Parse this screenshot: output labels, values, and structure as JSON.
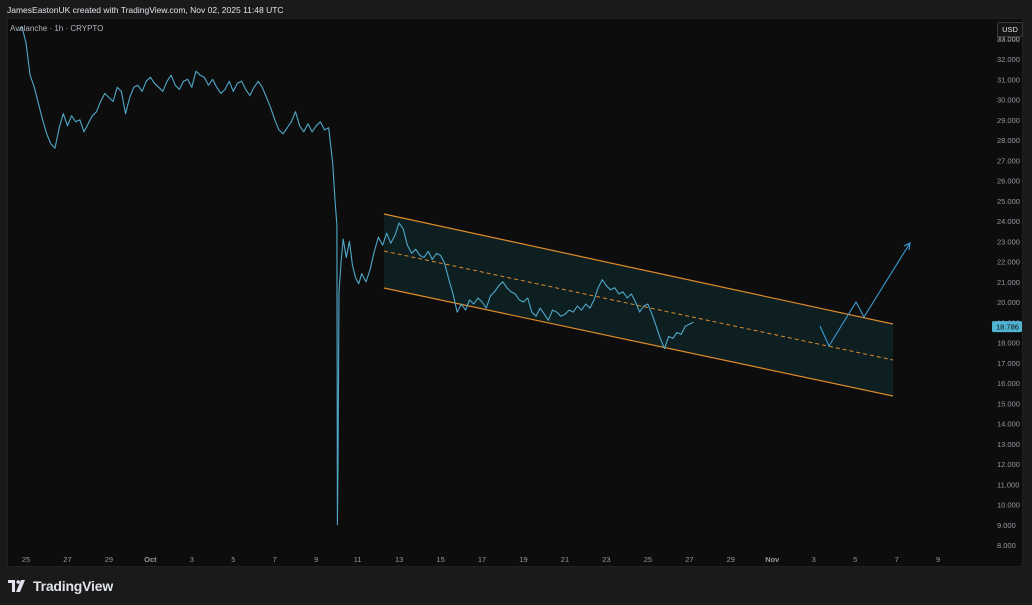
{
  "header": {
    "credit": "JamesEastonUK created with TradingView.com, Nov 02, 2025 11:48 UTC"
  },
  "symbol": {
    "label": "Avalanche · 1h · CRYPTO"
  },
  "axis": {
    "currency": "USD"
  },
  "logo": {
    "text": "TradingView"
  },
  "colors": {
    "price_line": "#4fa8c9",
    "channel_border": "#e08a2a",
    "channel_fill": "#0e2326",
    "price_label_bg": "#4fb3d1",
    "projection": "#3d9ad1",
    "axis_text": "#9598a1"
  },
  "chart_data": {
    "type": "line",
    "title": "",
    "ylabel": "",
    "ylim": [
      7.6,
      33.8
    ],
    "y_ticks": [
      "33.000",
      "32.000",
      "31.000",
      "30.000",
      "29.000",
      "28.000",
      "27.000",
      "26.000",
      "25.000",
      "24.000",
      "23.000",
      "22.000",
      "21.000",
      "20.000",
      "19.000",
      "18.000",
      "17.000",
      "16.000",
      "15.000",
      "14.000",
      "13.000",
      "12.000",
      "11.000",
      "10.000",
      "9.000",
      "8.000"
    ],
    "x_day_range": [
      24.6,
      39.4
    ],
    "x_ticks": [
      {
        "day": 25,
        "label": "25"
      },
      {
        "day": 27,
        "label": "27"
      },
      {
        "day": 29,
        "label": "29"
      },
      {
        "day": 31,
        "label": "Oct"
      },
      {
        "day": 33,
        "label": "3"
      },
      {
        "day": 35,
        "label": "5"
      },
      {
        "day": 37,
        "label": "7"
      },
      {
        "day": 39,
        "label": "9"
      },
      {
        "day": 41,
        "label": "11"
      },
      {
        "day": 43,
        "label": "13"
      },
      {
        "day": 45,
        "label": "15"
      },
      {
        "day": 47,
        "label": "17"
      },
      {
        "day": 49,
        "label": "19"
      },
      {
        "day": 51,
        "label": "21"
      },
      {
        "day": 53,
        "label": "23"
      },
      {
        "day": 55,
        "label": "25"
      },
      {
        "day": 57,
        "label": "27"
      },
      {
        "day": 59,
        "label": "29"
      },
      {
        "day": 61,
        "label": "Nov"
      },
      {
        "day": 63,
        "label": "3"
      },
      {
        "day": 65,
        "label": "5"
      },
      {
        "day": 67,
        "label": "7"
      },
      {
        "day": 69,
        "label": "9"
      }
    ],
    "x_unit": "days from Sep 1, 2025",
    "current_price": {
      "value": 18.786,
      "label": "18.786"
    },
    "series": [
      {
        "name": "",
        "points": [
          [
            24.65,
            33.4
          ],
          [
            24.8,
            33.6
          ],
          [
            25.0,
            32.8
          ],
          [
            25.2,
            31.2
          ],
          [
            25.4,
            30.6
          ],
          [
            25.6,
            29.8
          ],
          [
            25.8,
            29.0
          ],
          [
            26.0,
            28.3
          ],
          [
            26.2,
            27.8
          ],
          [
            26.4,
            27.6
          ],
          [
            26.6,
            28.6
          ],
          [
            26.8,
            29.3
          ],
          [
            27.0,
            28.7
          ],
          [
            27.2,
            29.2
          ],
          [
            27.4,
            28.9
          ],
          [
            27.6,
            29.0
          ],
          [
            27.8,
            28.4
          ],
          [
            28.0,
            28.8
          ],
          [
            28.2,
            29.2
          ],
          [
            28.4,
            29.4
          ],
          [
            28.6,
            29.9
          ],
          [
            28.8,
            30.3
          ],
          [
            29.0,
            30.1
          ],
          [
            29.2,
            29.9
          ],
          [
            29.4,
            30.6
          ],
          [
            29.6,
            30.4
          ],
          [
            29.8,
            29.3
          ],
          [
            30.0,
            30.1
          ],
          [
            30.2,
            30.6
          ],
          [
            30.4,
            30.7
          ],
          [
            30.6,
            30.4
          ],
          [
            30.8,
            30.9
          ],
          [
            31.0,
            31.1
          ],
          [
            31.2,
            30.8
          ],
          [
            31.4,
            30.6
          ],
          [
            31.6,
            30.4
          ],
          [
            31.8,
            30.9
          ],
          [
            32.0,
            31.2
          ],
          [
            32.2,
            30.7
          ],
          [
            32.4,
            30.5
          ],
          [
            32.6,
            30.9
          ],
          [
            32.8,
            31.0
          ],
          [
            33.0,
            30.6
          ],
          [
            33.2,
            31.4
          ],
          [
            33.4,
            31.2
          ],
          [
            33.6,
            31.1
          ],
          [
            33.8,
            30.7
          ],
          [
            34.0,
            31.0
          ],
          [
            34.2,
            30.6
          ],
          [
            34.4,
            30.3
          ],
          [
            34.6,
            30.5
          ],
          [
            34.8,
            30.9
          ],
          [
            35.0,
            30.4
          ],
          [
            35.2,
            30.8
          ],
          [
            35.4,
            30.9
          ],
          [
            35.6,
            30.5
          ],
          [
            35.8,
            30.2
          ],
          [
            36.0,
            30.6
          ],
          [
            36.2,
            30.9
          ],
          [
            36.4,
            30.6
          ],
          [
            36.6,
            30.1
          ],
          [
            36.8,
            29.6
          ],
          [
            37.0,
            29.0
          ],
          [
            37.2,
            28.5
          ],
          [
            37.4,
            28.3
          ],
          [
            37.6,
            28.6
          ],
          [
            37.8,
            28.9
          ],
          [
            38.0,
            29.4
          ],
          [
            38.2,
            28.7
          ],
          [
            38.4,
            28.4
          ],
          [
            38.6,
            28.8
          ],
          [
            38.8,
            28.4
          ],
          [
            39.0,
            28.7
          ],
          [
            39.2,
            28.9
          ],
          [
            39.4,
            28.5
          ],
          [
            39.6,
            28.6
          ],
          [
            39.8,
            26.8
          ],
          [
            39.9,
            25.1
          ],
          [
            40.0,
            23.8
          ],
          [
            40.02,
            9.0
          ],
          [
            40.05,
            12.0
          ],
          [
            40.1,
            20.5
          ],
          [
            40.2,
            22.0
          ],
          [
            40.3,
            23.1
          ],
          [
            40.45,
            22.2
          ],
          [
            40.6,
            23.0
          ],
          [
            40.75,
            21.8
          ],
          [
            40.9,
            21.2
          ],
          [
            41.05,
            20.9
          ],
          [
            41.2,
            21.4
          ],
          [
            41.4,
            21.0
          ],
          [
            41.6,
            21.6
          ],
          [
            41.8,
            22.5
          ],
          [
            42.0,
            23.2
          ],
          [
            42.2,
            22.8
          ],
          [
            42.4,
            23.4
          ],
          [
            42.6,
            22.9
          ],
          [
            42.8,
            23.3
          ],
          [
            43.0,
            23.9
          ],
          [
            43.2,
            23.6
          ],
          [
            43.4,
            22.8
          ],
          [
            43.6,
            22.4
          ],
          [
            43.8,
            22.6
          ],
          [
            44.0,
            22.3
          ],
          [
            44.2,
            22.2
          ],
          [
            44.4,
            22.5
          ],
          [
            44.6,
            22.1
          ],
          [
            44.8,
            22.4
          ],
          [
            45.0,
            22.3
          ],
          [
            45.2,
            21.9
          ],
          [
            45.4,
            21.1
          ],
          [
            45.6,
            20.4
          ],
          [
            45.8,
            19.5
          ],
          [
            46.0,
            19.9
          ],
          [
            46.2,
            19.6
          ],
          [
            46.4,
            20.1
          ],
          [
            46.6,
            19.9
          ],
          [
            46.8,
            20.2
          ],
          [
            47.0,
            20.0
          ],
          [
            47.2,
            19.7
          ],
          [
            47.4,
            20.3
          ],
          [
            47.6,
            20.5
          ],
          [
            47.8,
            20.8
          ],
          [
            48.0,
            21.0
          ],
          [
            48.2,
            20.7
          ],
          [
            48.4,
            20.5
          ],
          [
            48.6,
            20.4
          ],
          [
            48.8,
            20.1
          ],
          [
            49.0,
            20.0
          ],
          [
            49.2,
            20.2
          ],
          [
            49.4,
            19.5
          ],
          [
            49.6,
            19.3
          ],
          [
            49.8,
            19.7
          ],
          [
            50.0,
            19.4
          ],
          [
            50.2,
            19.1
          ],
          [
            50.4,
            19.6
          ],
          [
            50.6,
            19.5
          ],
          [
            50.8,
            19.3
          ],
          [
            51.0,
            19.4
          ],
          [
            51.2,
            19.6
          ],
          [
            51.4,
            19.5
          ],
          [
            51.6,
            19.8
          ],
          [
            51.8,
            19.6
          ],
          [
            52.0,
            19.9
          ],
          [
            52.2,
            19.7
          ],
          [
            52.4,
            20.1
          ],
          [
            52.6,
            20.7
          ],
          [
            52.8,
            21.1
          ],
          [
            53.0,
            20.8
          ],
          [
            53.2,
            20.6
          ],
          [
            53.4,
            20.7
          ],
          [
            53.6,
            20.4
          ],
          [
            53.8,
            20.5
          ],
          [
            54.0,
            20.2
          ],
          [
            54.2,
            20.4
          ],
          [
            54.4,
            20.0
          ],
          [
            54.6,
            19.5
          ],
          [
            54.8,
            19.8
          ],
          [
            55.0,
            19.9
          ],
          [
            55.2,
            19.4
          ],
          [
            55.4,
            18.8
          ],
          [
            55.6,
            18.2
          ],
          [
            55.8,
            17.7
          ],
          [
            56.0,
            18.3
          ],
          [
            56.2,
            18.2
          ],
          [
            56.4,
            18.5
          ],
          [
            56.6,
            18.4
          ],
          [
            56.8,
            18.8
          ],
          [
            57.0,
            18.9
          ],
          [
            57.2,
            19.0
          ]
        ]
      }
    ]
  }
}
